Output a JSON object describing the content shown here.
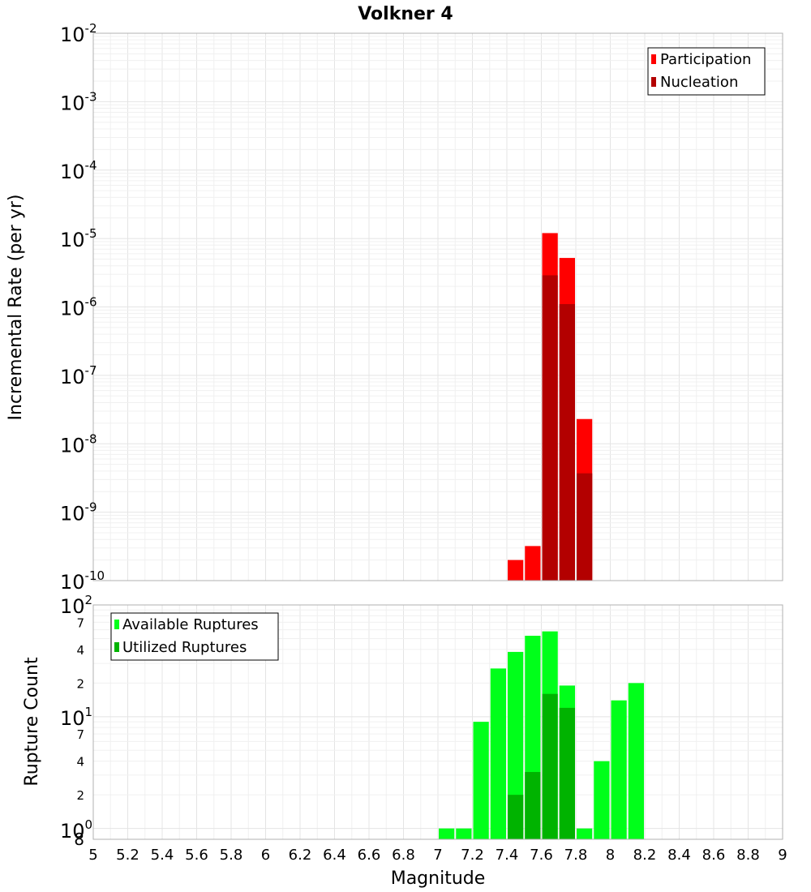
{
  "chart_data": [
    {
      "type": "bar",
      "title": "Volkner 4",
      "xlabel": "",
      "ylabel": "Incremental Rate (per yr)",
      "yscale": "log",
      "ylim": [
        1e-10,
        0.01
      ],
      "xlim": [
        5,
        9
      ],
      "y_ticks": [
        {
          "base": "10",
          "exp": "-2"
        },
        {
          "base": "10",
          "exp": "-3"
        },
        {
          "base": "10",
          "exp": "-4"
        },
        {
          "base": "10",
          "exp": "-5"
        },
        {
          "base": "10",
          "exp": "-6"
        },
        {
          "base": "10",
          "exp": "-7"
        },
        {
          "base": "10",
          "exp": "-8"
        },
        {
          "base": "10",
          "exp": "-9"
        },
        {
          "base": "10",
          "exp": "-10"
        }
      ],
      "legend_position": "top-right",
      "series": [
        {
          "name": "Participation",
          "color": "#ff0000",
          "x": [
            7.45,
            7.55,
            7.65,
            7.75,
            7.85
          ],
          "values": [
            2e-10,
            3.2e-10,
            1.2e-05,
            5.2e-06,
            2.3e-08
          ]
        },
        {
          "name": "Nucleation",
          "color": "#b30000",
          "x": [
            7.65,
            7.75,
            7.85
          ],
          "values": [
            2.9e-06,
            1.1e-06,
            3.7e-09
          ]
        }
      ]
    },
    {
      "type": "bar",
      "title": "",
      "xlabel": "Magnitude",
      "ylabel": "Rupture Count",
      "yscale": "log",
      "ylim": [
        0.8,
        100
      ],
      "xlim": [
        5,
        9
      ],
      "x_ticks": [
        "5",
        "5.2",
        "5.4",
        "5.6",
        "5.8",
        "6",
        "6.2",
        "6.4",
        "6.6",
        "6.8",
        "7",
        "7.2",
        "7.4",
        "7.6",
        "7.8",
        "8",
        "8.2",
        "8.4",
        "8.6",
        "8.8",
        "9"
      ],
      "y_major_ticks": [
        {
          "base": "10",
          "exp": "2"
        },
        {
          "base": "10",
          "exp": "1"
        },
        {
          "base": "10",
          "exp": "0"
        }
      ],
      "y_minor_labels": [
        "7",
        "4",
        "2",
        "7",
        "4",
        "2",
        "8"
      ],
      "legend_position": "top-left",
      "series": [
        {
          "name": "Available Ruptures",
          "color": "#00ff1a",
          "x": [
            7.05,
            7.15,
            7.25,
            7.35,
            7.45,
            7.55,
            7.65,
            7.75,
            7.85,
            7.95,
            8.05,
            8.15
          ],
          "values": [
            1,
            1,
            9,
            27,
            38,
            53,
            58,
            19,
            1,
            4,
            14,
            20
          ]
        },
        {
          "name": "Utilized Ruptures",
          "color": "#00b300",
          "x": [
            7.45,
            7.55,
            7.65,
            7.75
          ],
          "values": [
            2,
            3.2,
            16,
            12
          ]
        }
      ]
    }
  ]
}
